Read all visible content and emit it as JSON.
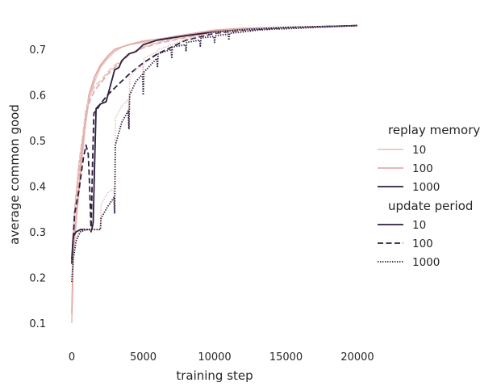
{
  "chart_data": {
    "type": "line",
    "title": "",
    "xlabel": "training step",
    "ylabel": "average common good",
    "xlim": [
      -500,
      20000
    ],
    "ylim": [
      0.06,
      0.78
    ],
    "xticks": [
      0,
      5000,
      10000,
      15000,
      20000
    ],
    "yticks": [
      0.1,
      0.2,
      0.3,
      0.4,
      0.5,
      0.6,
      0.7
    ],
    "xtick_labels": [
      "0",
      "5000",
      "10000",
      "15000",
      "20000"
    ],
    "ytick_labels": [
      "0.1",
      "0.2",
      "0.3",
      "0.4",
      "0.5",
      "0.6",
      "0.7"
    ],
    "grid": false,
    "legend": {
      "placement": "center-right",
      "hue_title": "replay memory",
      "hue_entries": [
        {
          "label": "10",
          "color": "#e8c4bf"
        },
        {
          "label": "100",
          "color": "#e3aca8"
        },
        {
          "label": "1000",
          "color": "#2d1e3e"
        }
      ],
      "style_title": "update period",
      "style_entries": [
        {
          "label": "10",
          "dash": "solid"
        },
        {
          "label": "100",
          "dash": "dashed"
        },
        {
          "label": "1000",
          "dash": "dotted"
        }
      ]
    },
    "series": [
      {
        "replay_memory": "10",
        "update_period": "10",
        "color": "#e8c4bf",
        "dash": "solid",
        "points": [
          [
            0,
            0.1
          ],
          [
            100,
            0.25
          ],
          [
            300,
            0.32
          ],
          [
            600,
            0.42
          ],
          [
            900,
            0.52
          ],
          [
            1200,
            0.59
          ],
          [
            1600,
            0.63
          ],
          [
            2000,
            0.66
          ],
          [
            2500,
            0.68
          ],
          [
            3000,
            0.695
          ],
          [
            3500,
            0.705
          ],
          [
            4000,
            0.71
          ],
          [
            5000,
            0.715
          ],
          [
            6000,
            0.72
          ],
          [
            8000,
            0.73
          ],
          [
            10000,
            0.74
          ],
          [
            12000,
            0.745
          ],
          [
            15000,
            0.748
          ],
          [
            18000,
            0.75
          ],
          [
            20000,
            0.752
          ]
        ]
      },
      {
        "replay_memory": "100",
        "update_period": "10",
        "color": "#e3aca8",
        "dash": "solid",
        "points": [
          [
            0,
            0.12
          ],
          [
            100,
            0.26
          ],
          [
            300,
            0.33
          ],
          [
            600,
            0.44
          ],
          [
            900,
            0.53
          ],
          [
            1200,
            0.6
          ],
          [
            1600,
            0.64
          ],
          [
            2000,
            0.665
          ],
          [
            2500,
            0.685
          ],
          [
            3000,
            0.7
          ],
          [
            3500,
            0.705
          ],
          [
            4000,
            0.71
          ],
          [
            5000,
            0.718
          ],
          [
            6000,
            0.722
          ],
          [
            8000,
            0.732
          ],
          [
            10000,
            0.742
          ],
          [
            12000,
            0.746
          ],
          [
            15000,
            0.748
          ],
          [
            18000,
            0.75
          ],
          [
            20000,
            0.752
          ]
        ]
      },
      {
        "replay_memory": "10",
        "update_period": "100",
        "color": "#e8c4bf",
        "dash": "dashed",
        "points": [
          [
            0,
            0.24
          ],
          [
            200,
            0.35
          ],
          [
            500,
            0.45
          ],
          [
            800,
            0.52
          ],
          [
            1000,
            0.57
          ],
          [
            1300,
            0.6
          ],
          [
            1600,
            0.62
          ],
          [
            2000,
            0.63
          ],
          [
            2500,
            0.65
          ],
          [
            3000,
            0.665
          ],
          [
            3500,
            0.675
          ],
          [
            4000,
            0.69
          ],
          [
            5000,
            0.705
          ],
          [
            6000,
            0.715
          ],
          [
            8000,
            0.728
          ],
          [
            10000,
            0.738
          ],
          [
            12000,
            0.744
          ],
          [
            15000,
            0.748
          ],
          [
            18000,
            0.75
          ],
          [
            20000,
            0.752
          ]
        ]
      },
      {
        "replay_memory": "100",
        "update_period": "100",
        "color": "#e3aca8",
        "dash": "dashed",
        "points": [
          [
            0,
            0.23
          ],
          [
            200,
            0.34
          ],
          [
            500,
            0.44
          ],
          [
            800,
            0.51
          ],
          [
            1000,
            0.56
          ],
          [
            1300,
            0.59
          ],
          [
            1600,
            0.61
          ],
          [
            2000,
            0.625
          ],
          [
            2500,
            0.645
          ],
          [
            3000,
            0.66
          ],
          [
            3500,
            0.672
          ],
          [
            4000,
            0.688
          ],
          [
            5000,
            0.703
          ],
          [
            6000,
            0.713
          ],
          [
            8000,
            0.726
          ],
          [
            10000,
            0.737
          ],
          [
            12000,
            0.743
          ],
          [
            15000,
            0.747
          ],
          [
            18000,
            0.75
          ],
          [
            20000,
            0.751
          ]
        ]
      },
      {
        "replay_memory": "1000",
        "update_period": "100",
        "color": "#2d1e3e",
        "dash": "dashed",
        "points": [
          [
            0,
            0.23
          ],
          [
            200,
            0.34
          ],
          [
            500,
            0.39
          ],
          [
            800,
            0.46
          ],
          [
            1000,
            0.49
          ],
          [
            1150,
            0.47
          ],
          [
            1250,
            0.4
          ],
          [
            1350,
            0.3
          ],
          [
            1450,
            0.45
          ],
          [
            1550,
            0.56
          ],
          [
            1800,
            0.57
          ],
          [
            2000,
            0.58
          ],
          [
            2500,
            0.6
          ],
          [
            3000,
            0.615
          ],
          [
            3500,
            0.63
          ],
          [
            4000,
            0.645
          ],
          [
            5000,
            0.67
          ],
          [
            6000,
            0.69
          ],
          [
            8000,
            0.72
          ],
          [
            10000,
            0.735
          ],
          [
            12000,
            0.742
          ],
          [
            15000,
            0.747
          ],
          [
            18000,
            0.75
          ],
          [
            20000,
            0.752
          ]
        ]
      },
      {
        "replay_memory": "1000",
        "update_period": "10",
        "color": "#2d1e3e",
        "dash": "solid",
        "points": [
          [
            0,
            0.24
          ],
          [
            100,
            0.29
          ],
          [
            300,
            0.3
          ],
          [
            600,
            0.305
          ],
          [
            1000,
            0.305
          ],
          [
            1400,
            0.305
          ],
          [
            1500,
            0.32
          ],
          [
            1600,
            0.45
          ],
          [
            1700,
            0.57
          ],
          [
            2000,
            0.58
          ],
          [
            2400,
            0.585
          ],
          [
            2700,
            0.62
          ],
          [
            3000,
            0.655
          ],
          [
            3300,
            0.66
          ],
          [
            3500,
            0.675
          ],
          [
            4000,
            0.69
          ],
          [
            4500,
            0.695
          ],
          [
            5000,
            0.71
          ],
          [
            6000,
            0.72
          ],
          [
            8000,
            0.73
          ],
          [
            10000,
            0.738
          ],
          [
            12000,
            0.743
          ],
          [
            15000,
            0.748
          ],
          [
            18000,
            0.75
          ],
          [
            20000,
            0.752
          ]
        ]
      },
      {
        "replay_memory": "10",
        "update_period": "1000",
        "color": "#e8c4bf",
        "dash": "dotted",
        "points": [
          [
            0,
            0.2
          ],
          [
            200,
            0.28
          ],
          [
            500,
            0.3
          ],
          [
            1000,
            0.305
          ],
          [
            2000,
            0.305
          ],
          [
            2050,
            0.36
          ],
          [
            2500,
            0.385
          ],
          [
            2950,
            0.395
          ],
          [
            3000,
            0.35
          ],
          [
            3050,
            0.55
          ],
          [
            3500,
            0.575
          ],
          [
            3950,
            0.59
          ],
          [
            4000,
            0.55
          ],
          [
            4050,
            0.64
          ],
          [
            4500,
            0.655
          ],
          [
            4950,
            0.665
          ],
          [
            5000,
            0.64
          ],
          [
            5050,
            0.68
          ],
          [
            6000,
            0.695
          ],
          [
            6050,
            0.7
          ],
          [
            7000,
            0.71
          ],
          [
            8000,
            0.722
          ],
          [
            9000,
            0.73
          ],
          [
            10000,
            0.737
          ],
          [
            12000,
            0.743
          ],
          [
            15000,
            0.748
          ],
          [
            18000,
            0.75
          ],
          [
            20000,
            0.752
          ]
        ]
      },
      {
        "replay_memory": "1000",
        "update_period": "1000",
        "color": "#2d1e3e",
        "dash": "dotted",
        "points": [
          [
            0,
            0.19
          ],
          [
            100,
            0.24
          ],
          [
            300,
            0.28
          ],
          [
            600,
            0.3
          ],
          [
            1000,
            0.305
          ],
          [
            2000,
            0.305
          ],
          [
            2050,
            0.33
          ],
          [
            2500,
            0.355
          ],
          [
            2950,
            0.375
          ],
          [
            3000,
            0.34
          ],
          [
            3050,
            0.49
          ],
          [
            3500,
            0.54
          ],
          [
            3950,
            0.565
          ],
          [
            4000,
            0.525
          ],
          [
            4050,
            0.6
          ],
          [
            4500,
            0.63
          ],
          [
            4950,
            0.645
          ],
          [
            5000,
            0.6
          ],
          [
            5050,
            0.65
          ],
          [
            5500,
            0.665
          ],
          [
            5950,
            0.68
          ],
          [
            6000,
            0.66
          ],
          [
            6050,
            0.69
          ],
          [
            6950,
            0.7
          ],
          [
            7000,
            0.68
          ],
          [
            7050,
            0.705
          ],
          [
            7950,
            0.71
          ],
          [
            8000,
            0.695
          ],
          [
            8050,
            0.715
          ],
          [
            8950,
            0.72
          ],
          [
            9000,
            0.705
          ],
          [
            9050,
            0.725
          ],
          [
            9950,
            0.728
          ],
          [
            10000,
            0.715
          ],
          [
            10050,
            0.73
          ],
          [
            10950,
            0.733
          ],
          [
            11000,
            0.72
          ],
          [
            11050,
            0.735
          ],
          [
            12000,
            0.738
          ],
          [
            13000,
            0.742
          ],
          [
            14000,
            0.744
          ],
          [
            15000,
            0.745
          ],
          [
            17000,
            0.748
          ],
          [
            20000,
            0.752
          ]
        ]
      }
    ]
  }
}
